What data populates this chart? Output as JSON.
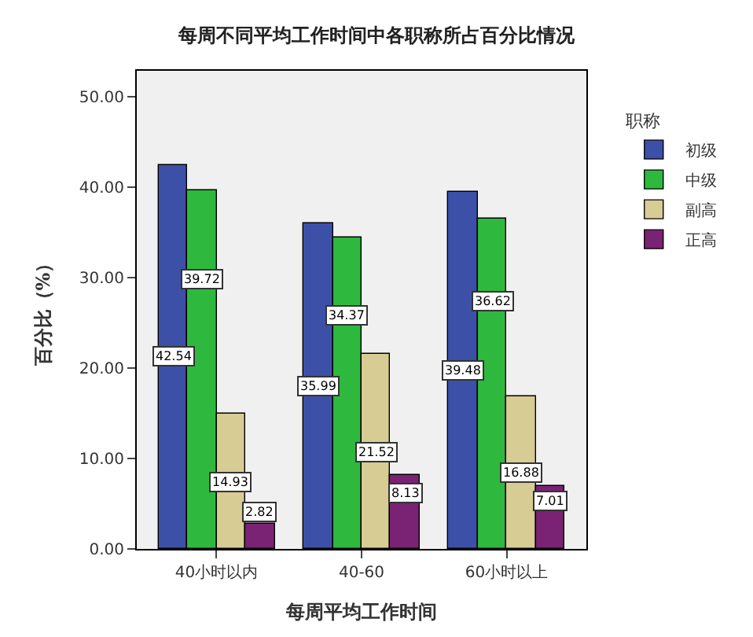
{
  "chart_data": {
    "type": "bar",
    "title": "每周不同平均工作时间中各职称所占百分比情况",
    "xlabel": "每周平均工作时间",
    "ylabel": "百分比（%）",
    "legend_title": "职称",
    "categories": [
      "40小时以内",
      "40-60",
      "60小时以上"
    ],
    "series": [
      {
        "name": "初级",
        "color": "#3d50a8",
        "values": [
          42.54,
          35.99,
          39.48
        ]
      },
      {
        "name": "中级",
        "color": "#2fb83e",
        "values": [
          39.72,
          34.37,
          36.62
        ]
      },
      {
        "name": "副高",
        "color": "#d6cc94",
        "values": [
          14.93,
          21.52,
          16.88
        ]
      },
      {
        "name": "正高",
        "color": "#7a2273",
        "values": [
          2.82,
          8.13,
          7.01
        ]
      }
    ],
    "ylim": [
      0,
      52.9
    ],
    "yticks": [
      {
        "value": 0,
        "label": "0.00"
      },
      {
        "value": 10,
        "label": "10.00"
      },
      {
        "value": 20,
        "label": "20.00"
      },
      {
        "value": 30,
        "label": "30.00"
      },
      {
        "value": 40,
        "label": "40.00"
      },
      {
        "value": 50,
        "label": "50.00"
      }
    ],
    "data_labels": true,
    "grid": false,
    "legend": "right"
  }
}
